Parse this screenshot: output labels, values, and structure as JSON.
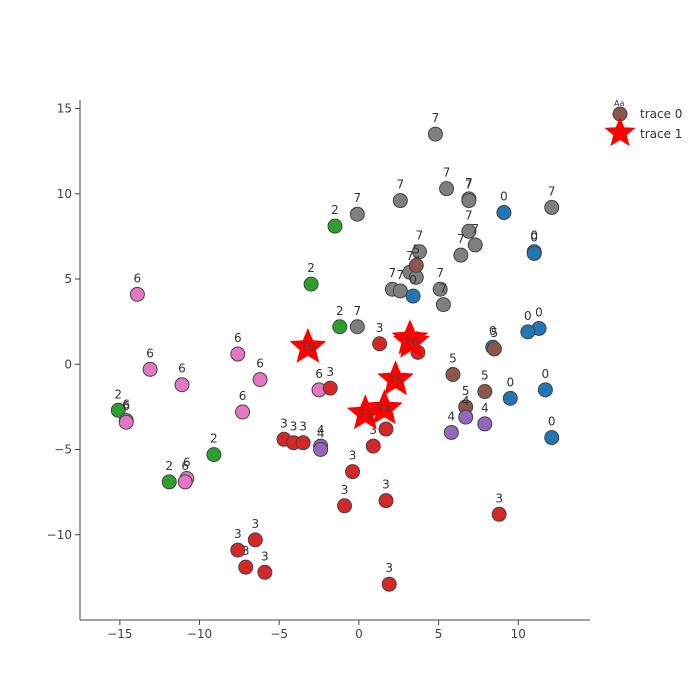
{
  "chart_data": {
    "type": "scatter",
    "xlim": [
      -17.5,
      14.5
    ],
    "ylim": [
      -15,
      15.5
    ],
    "xticks": [
      -15,
      -10,
      -5,
      0,
      5,
      10
    ],
    "yticks": [
      -10,
      -5,
      0,
      5,
      10,
      15
    ],
    "xtick_labels": [
      "−15",
      "−10",
      "−5",
      "0",
      "5",
      "10"
    ],
    "ytick_labels": [
      "−10",
      "−5",
      "0",
      "5",
      "10",
      "15"
    ],
    "grid": false,
    "legend_position": "top-right",
    "label_colors": {
      "0": "#1f77b4",
      "2": "#2ca02c",
      "3": "#d62728",
      "4": "#9467bd",
      "5": "#8c564b",
      "6": "#e377c2",
      "7": "#7f7f7f"
    },
    "series": [
      {
        "name": "trace 0",
        "marker": "circle",
        "legend_color": "#8c564b",
        "points": [
          {
            "x": 4.8,
            "y": 13.5,
            "label": "7"
          },
          {
            "x": 5.5,
            "y": 10.3,
            "label": "7"
          },
          {
            "x": 6.9,
            "y": 9.7,
            "label": "7"
          },
          {
            "x": 6.9,
            "y": 9.6,
            "label": "7"
          },
          {
            "x": -0.1,
            "y": 8.8,
            "label": "7"
          },
          {
            "x": 2.6,
            "y": 9.6,
            "label": "7"
          },
          {
            "x": 12.1,
            "y": 9.2,
            "label": "7"
          },
          {
            "x": 6.9,
            "y": 7.8,
            "label": "7"
          },
          {
            "x": 7.3,
            "y": 7.0,
            "label": "7"
          },
          {
            "x": 6.4,
            "y": 6.4,
            "label": "7"
          },
          {
            "x": 3.8,
            "y": 6.6,
            "label": "7"
          },
          {
            "x": 3.2,
            "y": 5.4,
            "label": "7"
          },
          {
            "x": 3.6,
            "y": 5.1,
            "label": "7"
          },
          {
            "x": 2.1,
            "y": 4.4,
            "label": "7"
          },
          {
            "x": 2.6,
            "y": 4.3,
            "label": "7"
          },
          {
            "x": 5.1,
            "y": 4.4,
            "label": "7"
          },
          {
            "x": 5.3,
            "y": 3.5,
            "label": "7"
          },
          {
            "x": -0.1,
            "y": 2.2,
            "label": "7"
          },
          {
            "x": 9.1,
            "y": 8.9,
            "label": "0"
          },
          {
            "x": 11.0,
            "y": 6.6,
            "label": "0"
          },
          {
            "x": 11.0,
            "y": 6.5,
            "label": "0"
          },
          {
            "x": 3.4,
            "y": 4.0,
            "label": "0"
          },
          {
            "x": 11.3,
            "y": 2.1,
            "label": "0"
          },
          {
            "x": 10.6,
            "y": 1.9,
            "label": "0"
          },
          {
            "x": 8.4,
            "y": 1.0,
            "label": "0"
          },
          {
            "x": 9.5,
            "y": -2.0,
            "label": "0"
          },
          {
            "x": 11.7,
            "y": -1.5,
            "label": "0"
          },
          {
            "x": 12.1,
            "y": -4.3,
            "label": "0"
          },
          {
            "x": -1.5,
            "y": 8.1,
            "label": "2"
          },
          {
            "x": -3.0,
            "y": 4.7,
            "label": "2"
          },
          {
            "x": -1.2,
            "y": 2.2,
            "label": "2"
          },
          {
            "x": -15.1,
            "y": -2.7,
            "label": "2"
          },
          {
            "x": -9.1,
            "y": -5.3,
            "label": "2"
          },
          {
            "x": -11.9,
            "y": -6.9,
            "label": "2"
          },
          {
            "x": 3.6,
            "y": 5.8,
            "label": "5"
          },
          {
            "x": 8.5,
            "y": 0.9,
            "label": "5"
          },
          {
            "x": 5.9,
            "y": -0.6,
            "label": "5"
          },
          {
            "x": 7.9,
            "y": -1.6,
            "label": "5"
          },
          {
            "x": 6.7,
            "y": -2.5,
            "label": "5"
          },
          {
            "x": 6.7,
            "y": -3.1,
            "label": "4"
          },
          {
            "x": 5.8,
            "y": -4.0,
            "label": "4"
          },
          {
            "x": 7.9,
            "y": -3.5,
            "label": "4"
          },
          {
            "x": -2.4,
            "y": -4.8,
            "label": "4"
          },
          {
            "x": -2.4,
            "y": -5.0,
            "label": "4"
          },
          {
            "x": -13.9,
            "y": 4.1,
            "label": "6"
          },
          {
            "x": -13.1,
            "y": -0.3,
            "label": "6"
          },
          {
            "x": -7.6,
            "y": 0.6,
            "label": "6"
          },
          {
            "x": -11.1,
            "y": -1.2,
            "label": "6"
          },
          {
            "x": -6.2,
            "y": -0.9,
            "label": "6"
          },
          {
            "x": -2.5,
            "y": -1.5,
            "label": "6"
          },
          {
            "x": -7.3,
            "y": -2.8,
            "label": "6"
          },
          {
            "x": -14.6,
            "y": -3.3,
            "label": "6"
          },
          {
            "x": -14.6,
            "y": -3.4,
            "label": "6"
          },
          {
            "x": -10.8,
            "y": -6.7,
            "label": "6"
          },
          {
            "x": -10.9,
            "y": -6.9,
            "label": "6"
          },
          {
            "x": 1.3,
            "y": 1.2,
            "label": "3"
          },
          {
            "x": 3.7,
            "y": 0.7,
            "label": "3"
          },
          {
            "x": -1.8,
            "y": -1.4,
            "label": "3"
          },
          {
            "x": -4.7,
            "y": -4.4,
            "label": "3"
          },
          {
            "x": -4.1,
            "y": -4.6,
            "label": "3"
          },
          {
            "x": -3.5,
            "y": -4.6,
            "label": "3"
          },
          {
            "x": 1.7,
            "y": -3.8,
            "label": "3"
          },
          {
            "x": 0.9,
            "y": -4.8,
            "label": "3"
          },
          {
            "x": -0.4,
            "y": -6.3,
            "label": "3"
          },
          {
            "x": -0.9,
            "y": -8.3,
            "label": "3"
          },
          {
            "x": 1.7,
            "y": -8.0,
            "label": "3"
          },
          {
            "x": 8.8,
            "y": -8.8,
            "label": "3"
          },
          {
            "x": -6.5,
            "y": -10.3,
            "label": "3"
          },
          {
            "x": -7.6,
            "y": -10.9,
            "label": "3"
          },
          {
            "x": -7.1,
            "y": -11.9,
            "label": "3"
          },
          {
            "x": -5.9,
            "y": -12.2,
            "label": "3"
          },
          {
            "x": 1.9,
            "y": -12.9,
            "label": "3"
          }
        ]
      },
      {
        "name": "trace 1",
        "marker": "star",
        "legend_color": "#ff0000",
        "points": [
          {
            "x": -3.2,
            "y": 1.0,
            "label": "T6"
          },
          {
            "x": 3.2,
            "y": 1.5,
            "label": "T7"
          },
          {
            "x": 3.3,
            "y": 1.3,
            "label": "T0"
          },
          {
            "x": 2.3,
            "y": -0.9,
            "label": "T5"
          },
          {
            "x": 0.4,
            "y": -2.9,
            "label": "T3"
          },
          {
            "x": 1.6,
            "y": -2.6,
            "label": "T4"
          }
        ]
      }
    ]
  }
}
